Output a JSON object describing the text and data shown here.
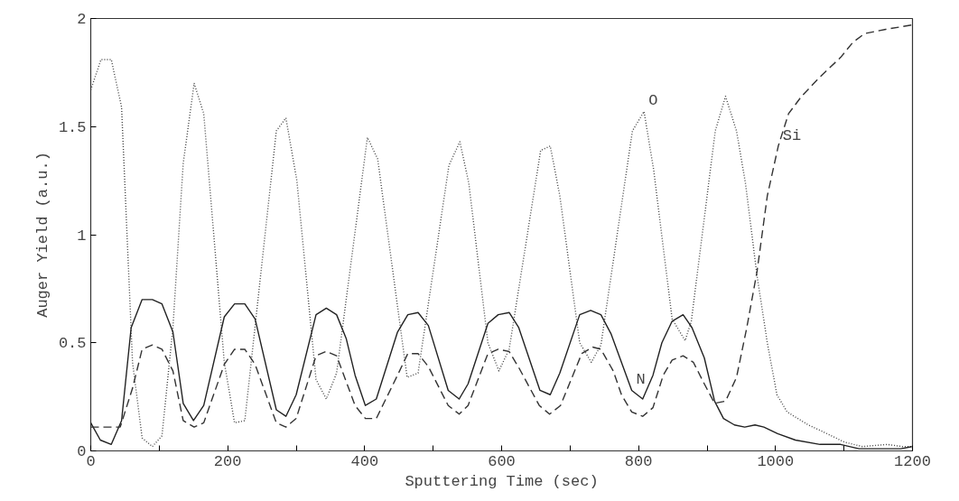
{
  "chart_data": {
    "type": "line",
    "xlabel": "Sputtering Time (sec)",
    "ylabel": "Auger Yield (a.u.)",
    "xlim": [
      0,
      1200
    ],
    "ylim": [
      0,
      2
    ],
    "xticks": [
      0,
      {
        "value": 100,
        "label": null
      },
      200,
      {
        "value": 300,
        "label": null
      },
      400,
      {
        "value": 500,
        "label": null
      },
      600,
      {
        "value": 700,
        "label": null
      },
      800,
      {
        "value": 900,
        "label": null
      },
      1000,
      {
        "value": 1100,
        "label": null
      },
      1200
    ],
    "yticks": [
      0,
      0.5,
      1,
      1.5,
      2
    ],
    "grid": false,
    "marker": "none",
    "annotations": [
      {
        "text": "O",
        "x": 808,
        "y": 1.57
      },
      {
        "text": "Si",
        "x": 1004,
        "y": 1.41
      },
      {
        "text": "N",
        "x": 790,
        "y": 0.28
      }
    ],
    "series": [
      {
        "color": "#444444",
        "line_style": "dotted",
        "x": [
          0,
          15,
          30,
          45,
          61,
          75,
          90,
          104,
          120,
          135,
          151,
          165,
          195,
          210,
          225,
          271,
          285,
          301,
          329,
          344,
          359,
          404,
          419,
          462,
          478,
          523,
          539,
          552,
          580,
          596,
          611,
          657,
          671,
          685,
          714,
          731,
          745,
          791,
          808,
          822,
          849,
          868,
          877,
          912,
          927,
          943,
          956,
          973,
          988,
          1002,
          1017,
          1048,
          1075,
          1101,
          1127,
          1163,
          1185,
          1199
        ],
        "values": [
          1.67,
          1.81,
          1.81,
          1.59,
          0.41,
          0.06,
          0.02,
          0.07,
          0.57,
          1.33,
          1.7,
          1.56,
          0.41,
          0.13,
          0.14,
          1.48,
          1.54,
          1.25,
          0.33,
          0.24,
          0.36,
          1.45,
          1.35,
          0.34,
          0.36,
          1.32,
          1.43,
          1.24,
          0.5,
          0.37,
          0.47,
          1.39,
          1.41,
          1.18,
          0.5,
          0.41,
          0.49,
          1.48,
          1.57,
          1.3,
          0.61,
          0.51,
          0.6,
          1.48,
          1.64,
          1.48,
          1.24,
          0.81,
          0.5,
          0.26,
          0.18,
          0.12,
          0.08,
          0.04,
          0.02,
          0.03,
          0.02,
          0.02
        ]
      },
      {
        "color": "#222222",
        "line_style": "solid",
        "x": [
          0,
          14,
          30,
          45,
          59,
          75,
          90,
          104,
          120,
          135,
          150,
          165,
          195,
          210,
          225,
          240,
          271,
          285,
          300,
          329,
          344,
          359,
          373,
          386,
          401,
          417,
          448,
          463,
          478,
          493,
          522,
          538,
          551,
          580,
          595,
          611,
          625,
          656,
          671,
          685,
          714,
          730,
          745,
          760,
          790,
          806,
          821,
          834,
          849,
          865,
          878,
          896,
          911,
          924,
          940,
          955,
          970,
          983,
          1003,
          1029,
          1065,
          1095,
          1122,
          1152,
          1183,
          1199
        ],
        "values": [
          0.13,
          0.05,
          0.03,
          0.14,
          0.57,
          0.7,
          0.7,
          0.68,
          0.55,
          0.22,
          0.14,
          0.21,
          0.62,
          0.68,
          0.68,
          0.61,
          0.19,
          0.16,
          0.26,
          0.63,
          0.66,
          0.63,
          0.52,
          0.35,
          0.21,
          0.24,
          0.55,
          0.63,
          0.64,
          0.58,
          0.28,
          0.24,
          0.31,
          0.59,
          0.63,
          0.64,
          0.57,
          0.28,
          0.26,
          0.36,
          0.63,
          0.65,
          0.63,
          0.54,
          0.28,
          0.24,
          0.35,
          0.5,
          0.6,
          0.63,
          0.57,
          0.43,
          0.23,
          0.15,
          0.12,
          0.11,
          0.12,
          0.11,
          0.08,
          0.05,
          0.03,
          0.03,
          0.01,
          0.01,
          0.01,
          0.02
        ]
      },
      {
        "color": "#333333",
        "line_style": "dashed",
        "x": [
          0,
          19,
          43,
          61,
          75,
          90,
          104,
          120,
          135,
          151,
          165,
          195,
          210,
          225,
          240,
          271,
          285,
          300,
          329,
          344,
          359,
          386,
          401,
          417,
          448,
          463,
          478,
          493,
          522,
          538,
          551,
          580,
          595,
          611,
          626,
          655,
          670,
          686,
          717,
          733,
          745,
          763,
          775,
          790,
          806,
          821,
          836,
          849,
          865,
          880,
          896,
          911,
          927,
          943,
          958,
          973,
          988,
          1004,
          1019,
          1038,
          1065,
          1095,
          1113,
          1130,
          1161,
          1199
        ],
        "values": [
          0.11,
          0.11,
          0.11,
          0.29,
          0.47,
          0.49,
          0.47,
          0.37,
          0.14,
          0.11,
          0.13,
          0.4,
          0.47,
          0.47,
          0.4,
          0.13,
          0.11,
          0.15,
          0.44,
          0.46,
          0.44,
          0.21,
          0.15,
          0.15,
          0.35,
          0.45,
          0.45,
          0.39,
          0.21,
          0.17,
          0.21,
          0.45,
          0.47,
          0.46,
          0.38,
          0.21,
          0.17,
          0.21,
          0.45,
          0.48,
          0.47,
          0.37,
          0.26,
          0.18,
          0.16,
          0.2,
          0.35,
          0.42,
          0.44,
          0.41,
          0.31,
          0.22,
          0.23,
          0.34,
          0.57,
          0.83,
          1.18,
          1.41,
          1.56,
          1.64,
          1.73,
          1.82,
          1.89,
          1.93,
          1.95,
          1.97
        ]
      }
    ]
  }
}
